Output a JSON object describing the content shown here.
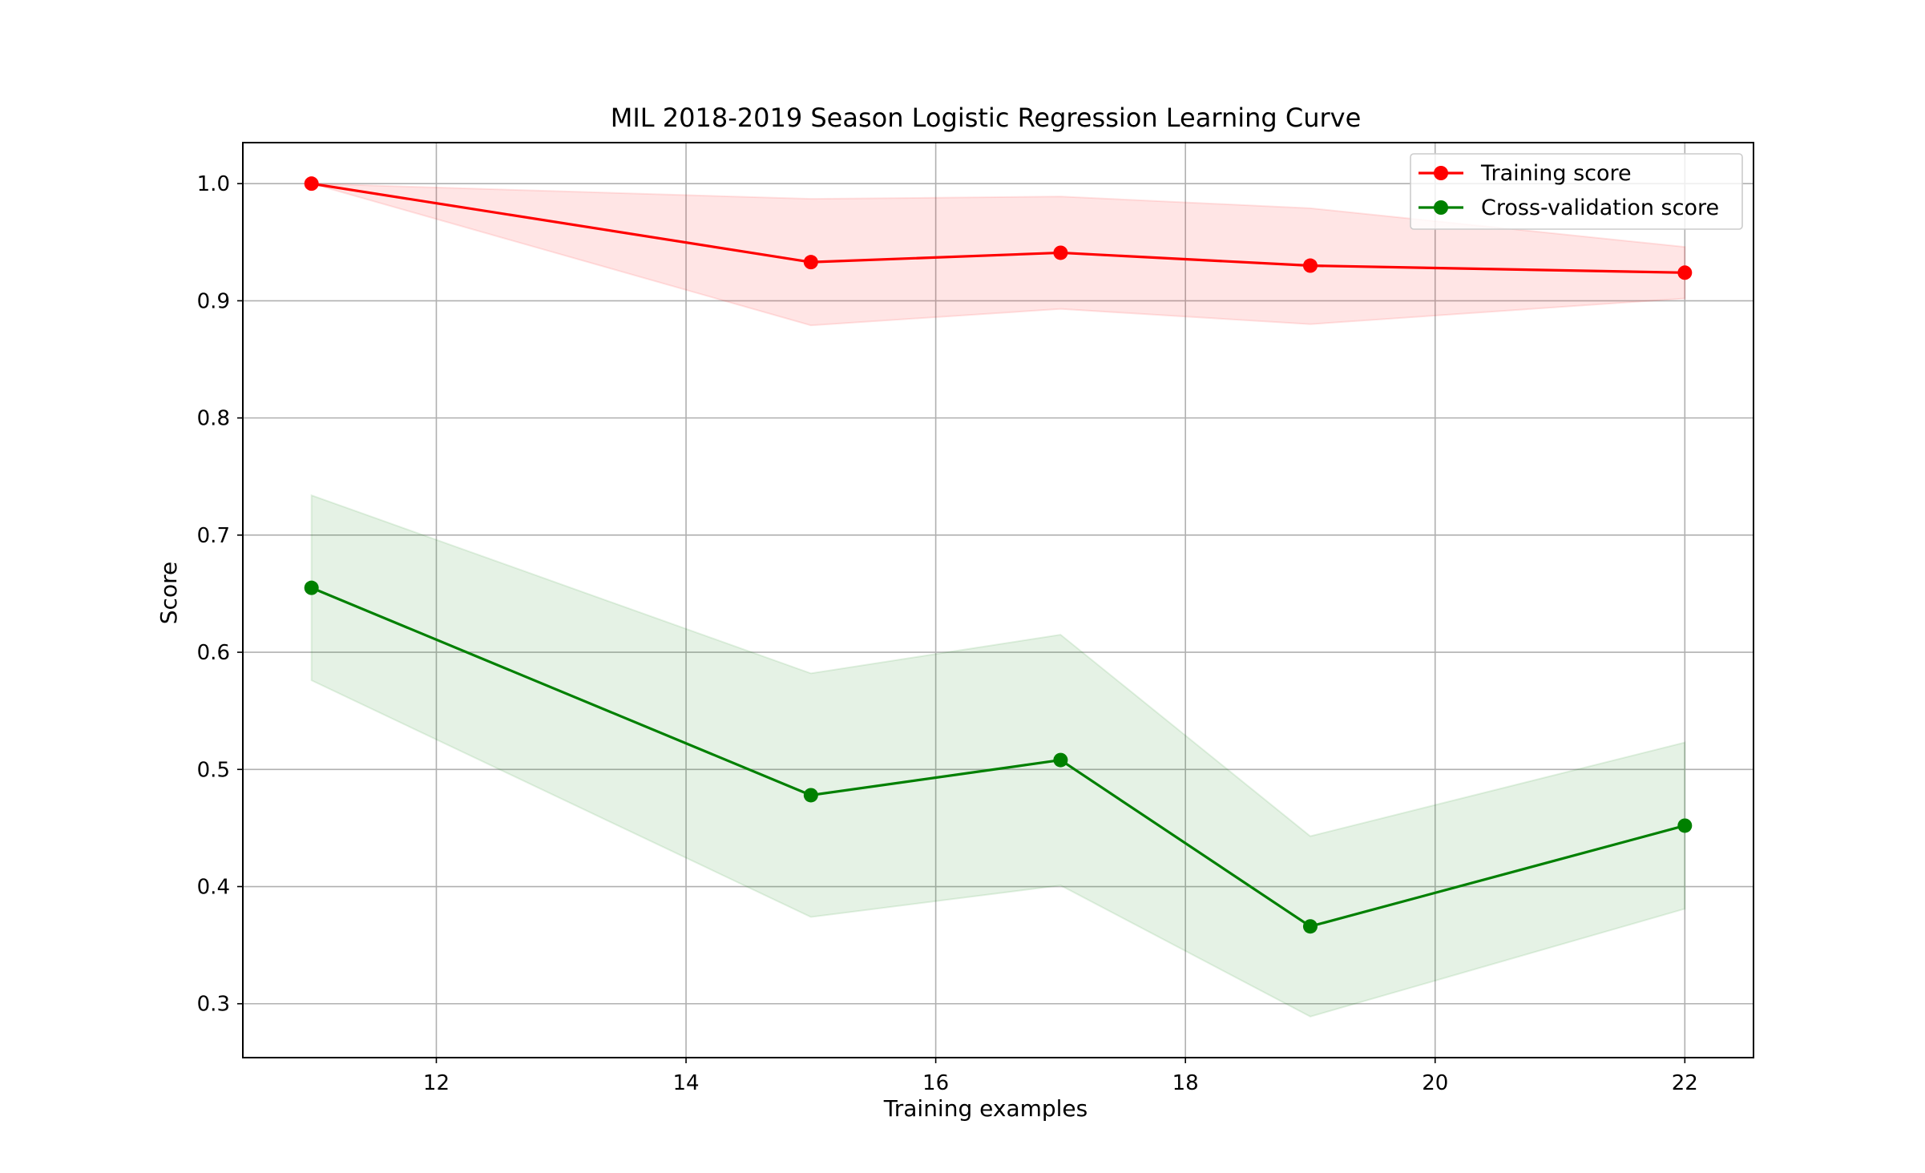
{
  "chart_data": {
    "type": "line",
    "title": "MIL 2018-2019 Season Logistic Regression Learning Curve",
    "xlabel": "Training examples",
    "ylabel": "Score",
    "x": [
      11,
      15,
      17,
      19,
      22
    ],
    "xlim": [
      10.45,
      22.55
    ],
    "ylim": [
      0.254,
      1.035
    ],
    "xticks": [
      12,
      14,
      16,
      18,
      20,
      22
    ],
    "yticks": [
      0.3,
      0.4,
      0.5,
      0.6,
      0.7,
      0.8,
      0.9,
      1.0
    ],
    "grid": true,
    "legend_position": "top-right",
    "series": [
      {
        "name": "Training score",
        "color": "#ff0000",
        "band_color": "#ff0000",
        "values": [
          1.0,
          0.933,
          0.941,
          0.93,
          0.924
        ],
        "upper": [
          1.0,
          0.987,
          0.989,
          0.979,
          0.946
        ],
        "lower": [
          1.0,
          0.879,
          0.893,
          0.88,
          0.902
        ]
      },
      {
        "name": "Cross-validation score",
        "color": "#008000",
        "band_color": "#008000",
        "values": [
          0.655,
          0.478,
          0.508,
          0.366,
          0.452
        ],
        "upper": [
          0.734,
          0.582,
          0.615,
          0.443,
          0.523
        ],
        "lower": [
          0.576,
          0.374,
          0.401,
          0.289,
          0.381
        ]
      }
    ]
  }
}
